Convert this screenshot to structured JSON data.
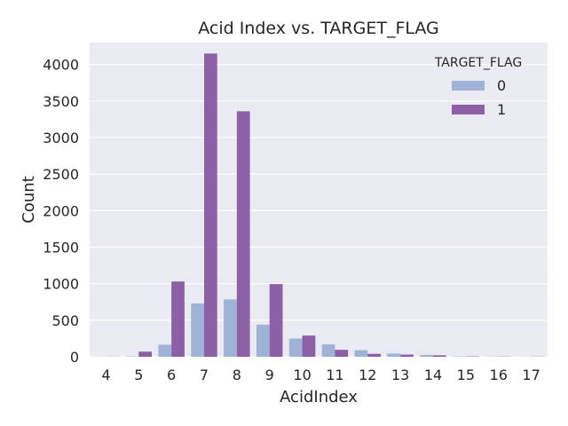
{
  "chart_data": {
    "type": "bar",
    "title": "Acid Index vs. TARGET_FLAG",
    "xlabel": "AcidIndex",
    "ylabel": "Count",
    "ylim": [
      0,
      4300
    ],
    "yticks": [
      0,
      500,
      1000,
      1500,
      2000,
      2500,
      3000,
      3500,
      4000
    ],
    "categories": [
      "4",
      "5",
      "6",
      "7",
      "8",
      "9",
      "10",
      "11",
      "12",
      "13",
      "14",
      "15",
      "16",
      "17"
    ],
    "grid": "horizontal",
    "legend": {
      "title": "TARGET_FLAG",
      "placement": "upper-right"
    },
    "series": [
      {
        "name": "0",
        "color": "#9fb3d6",
        "values": [
          1,
          5,
          165,
          730,
          785,
          440,
          250,
          170,
          90,
          45,
          25,
          5,
          3,
          2
        ]
      },
      {
        "name": "1",
        "color": "#8c5fa7",
        "values": [
          2,
          70,
          1030,
          4150,
          3360,
          995,
          290,
          95,
          40,
          30,
          20,
          5,
          3,
          3
        ]
      }
    ],
    "colors": {
      "background": "#eaeaf2",
      "grid": "#ffffff",
      "text": "#262626"
    }
  }
}
